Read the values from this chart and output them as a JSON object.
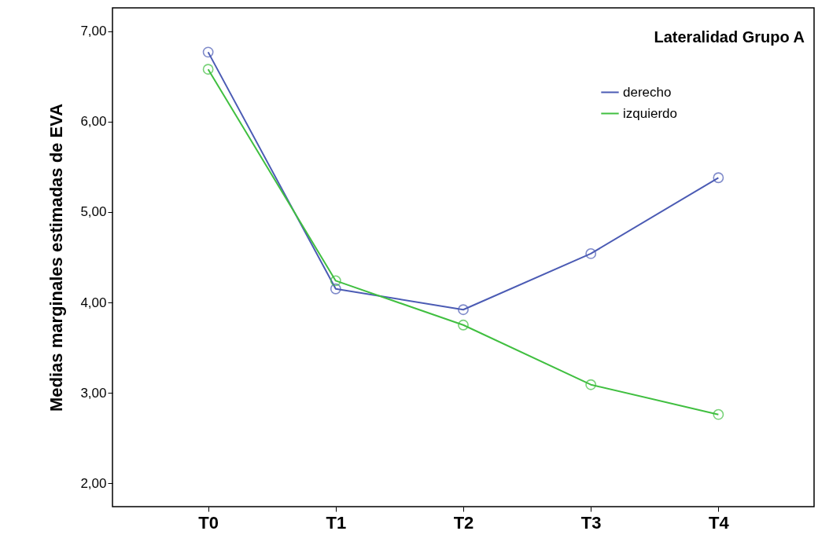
{
  "chart_data": {
    "type": "line",
    "title": "Lateralidad Grupo A",
    "ylabel": "Medias marginales estimadas de EVA",
    "categories": [
      "T0",
      "T1",
      "T2",
      "T3",
      "T4"
    ],
    "series": [
      {
        "name": "derecho",
        "color": "#4b5bb4",
        "values": [
          6.77,
          4.15,
          3.92,
          4.54,
          5.38
        ]
      },
      {
        "name": "izquierdo",
        "color": "#40bf40",
        "values": [
          6.58,
          4.24,
          3.75,
          3.09,
          2.76
        ]
      }
    ],
    "ylim": [
      1.74,
      7.26
    ],
    "yticks": [
      {
        "value": 2,
        "label": "2,00"
      },
      {
        "value": 3,
        "label": "3,00"
      },
      {
        "value": 4,
        "label": "4,00"
      },
      {
        "value": 5,
        "label": "5,00"
      },
      {
        "value": 6,
        "label": "6,00"
      },
      {
        "value": 7,
        "label": "7,00"
      }
    ],
    "marker": "circle",
    "grid": false,
    "legend": "top right"
  }
}
